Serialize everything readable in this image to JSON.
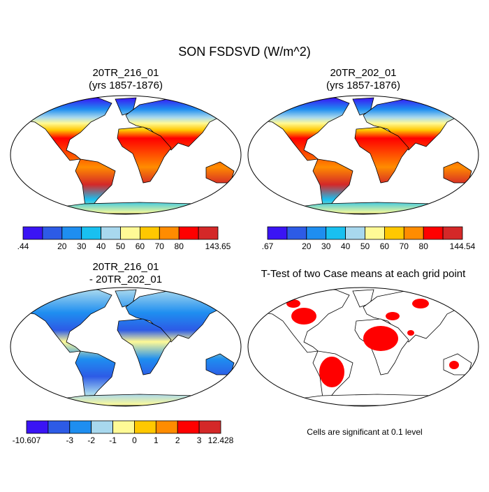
{
  "title": "SON FSDSVD (W/m^2)",
  "panels": [
    {
      "title": [
        "20TR_216_01",
        "(yrs 1857-1876)"
      ],
      "colorbar": {
        "colors": [
          "#3a14f5",
          "#2d5be6",
          "#1e8ef0",
          "#19c0f0",
          "#a8d8ee",
          "#fffa96",
          "#ffc800",
          "#ff8c00",
          "#ff0000",
          "#d42828"
        ],
        "labels": [
          ".44",
          null,
          "20",
          "30",
          "40",
          "50",
          "60",
          "70",
          "80",
          null,
          "143.65"
        ]
      }
    },
    {
      "title": [
        "20TR_202_01",
        "(yrs 1857-1876)"
      ],
      "colorbar": {
        "colors": [
          "#3a14f5",
          "#2d5be6",
          "#1e8ef0",
          "#19c0f0",
          "#a8d8ee",
          "#fffa96",
          "#ffc800",
          "#ff8c00",
          "#ff0000",
          "#d42828"
        ],
        "labels": [
          ".67",
          null,
          "20",
          "30",
          "40",
          "50",
          "60",
          "70",
          "80",
          null,
          "144.54"
        ]
      }
    },
    {
      "title": [
        "20TR_216_01",
        "- 20TR_202_01"
      ],
      "colorbar": {
        "colors": [
          "#3a14f5",
          "#2d5be6",
          "#1e8ef0",
          "#a8d8ee",
          "#fffa96",
          "#ffc800",
          "#ff8c00",
          "#ff0000",
          "#d42828"
        ],
        "labels": [
          "-10.607",
          null,
          "-3",
          "-2",
          "-1",
          "0",
          "1",
          "2",
          "3",
          "12.428"
        ]
      }
    },
    {
      "title": [
        "T-Test of two Case means at each grid point"
      ],
      "note": "Cells are significant at 0.1 level"
    }
  ]
}
